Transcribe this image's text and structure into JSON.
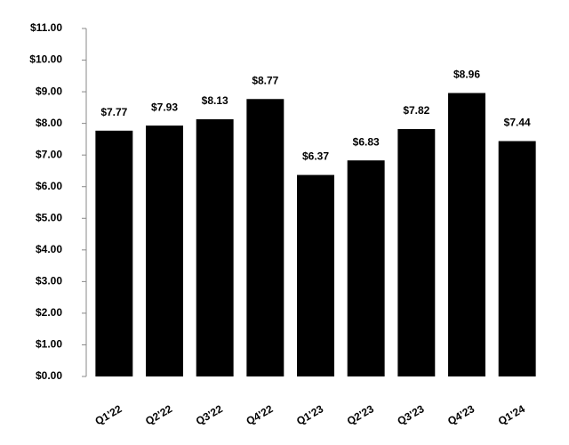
{
  "chart_data": {
    "type": "bar",
    "categories": [
      "Q1'22",
      "Q2'22",
      "Q3'22",
      "Q4'22",
      "Q1'23",
      "Q2'23",
      "Q3'23",
      "Q4'23",
      "Q1'24"
    ],
    "values": [
      7.77,
      7.93,
      8.13,
      8.77,
      6.37,
      6.83,
      7.82,
      8.96,
      7.44
    ],
    "value_labels": [
      "$7.77",
      "$7.93",
      "$8.13",
      "$8.77",
      "$6.37",
      "$6.83",
      "$7.82",
      "$8.96",
      "$7.44"
    ],
    "color": "#000000",
    "ylim": [
      0,
      11
    ],
    "yticks": [
      {
        "value": 0,
        "label": "$0.00"
      },
      {
        "value": 1,
        "label": "$1.00"
      },
      {
        "value": 2,
        "label": "$2.00"
      },
      {
        "value": 3,
        "label": "$3.00"
      },
      {
        "value": 4,
        "label": "$4.00"
      },
      {
        "value": 5,
        "label": "$5.00"
      },
      {
        "value": 6,
        "label": "$6.00"
      },
      {
        "value": 7,
        "label": "$7.00"
      },
      {
        "value": 8,
        "label": "$8.00"
      },
      {
        "value": 9,
        "label": "$9.00"
      },
      {
        "value": 10,
        "label": "$10.00"
      },
      {
        "value": 11,
        "label": "$11.00"
      }
    ],
    "grid": false
  }
}
